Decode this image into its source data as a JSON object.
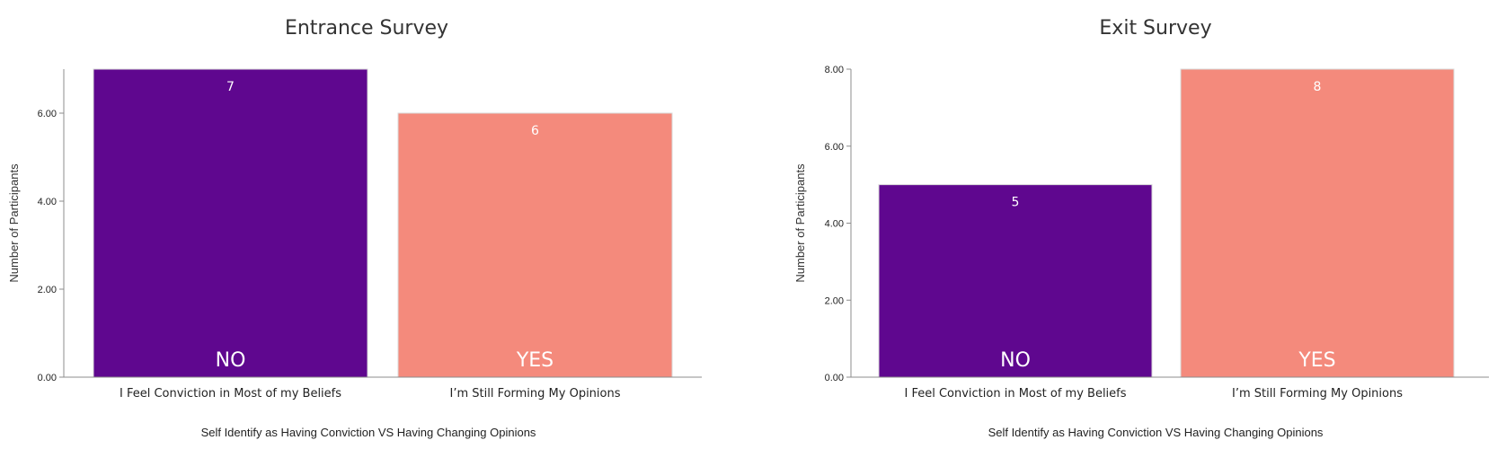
{
  "chart_data": [
    {
      "type": "bar",
      "title": "Entrance Survey",
      "categories": [
        "I Feel Conviction in Most of my Beliefs",
        "I’m Still Forming My Opinions"
      ],
      "values": [
        7,
        6
      ],
      "value_labels": [
        "7",
        "6"
      ],
      "bar_labels": [
        "NO",
        "YES"
      ],
      "colors": [
        "#5f078f",
        "#f48a7c"
      ],
      "xlabel": "Self Identify as Having Conviction VS Having Changing Opinions",
      "ylabel": "Number of Participants",
      "ylim": [
        0,
        7
      ],
      "yticks": [
        0,
        2,
        4,
        6
      ],
      "ytick_labels": [
        "0.00",
        "2.00",
        "4.00",
        "6.00"
      ],
      "grid": false
    },
    {
      "type": "bar",
      "title": "Exit Survey",
      "categories": [
        "I Feel Conviction in Most of my Beliefs",
        "I’m Still Forming My Opinions"
      ],
      "values": [
        5,
        8
      ],
      "value_labels": [
        "5",
        "8"
      ],
      "bar_labels": [
        "NO",
        "YES"
      ],
      "colors": [
        "#5f078f",
        "#f48a7c"
      ],
      "xlabel": "Self Identify as Having Conviction VS Having Changing Opinions",
      "ylabel": "Number of Participants",
      "ylim": [
        0,
        8
      ],
      "yticks": [
        0,
        2,
        4,
        6,
        8
      ],
      "ytick_labels": [
        "0.00",
        "2.00",
        "4.00",
        "6.00",
        "8.00"
      ],
      "grid": false
    }
  ]
}
